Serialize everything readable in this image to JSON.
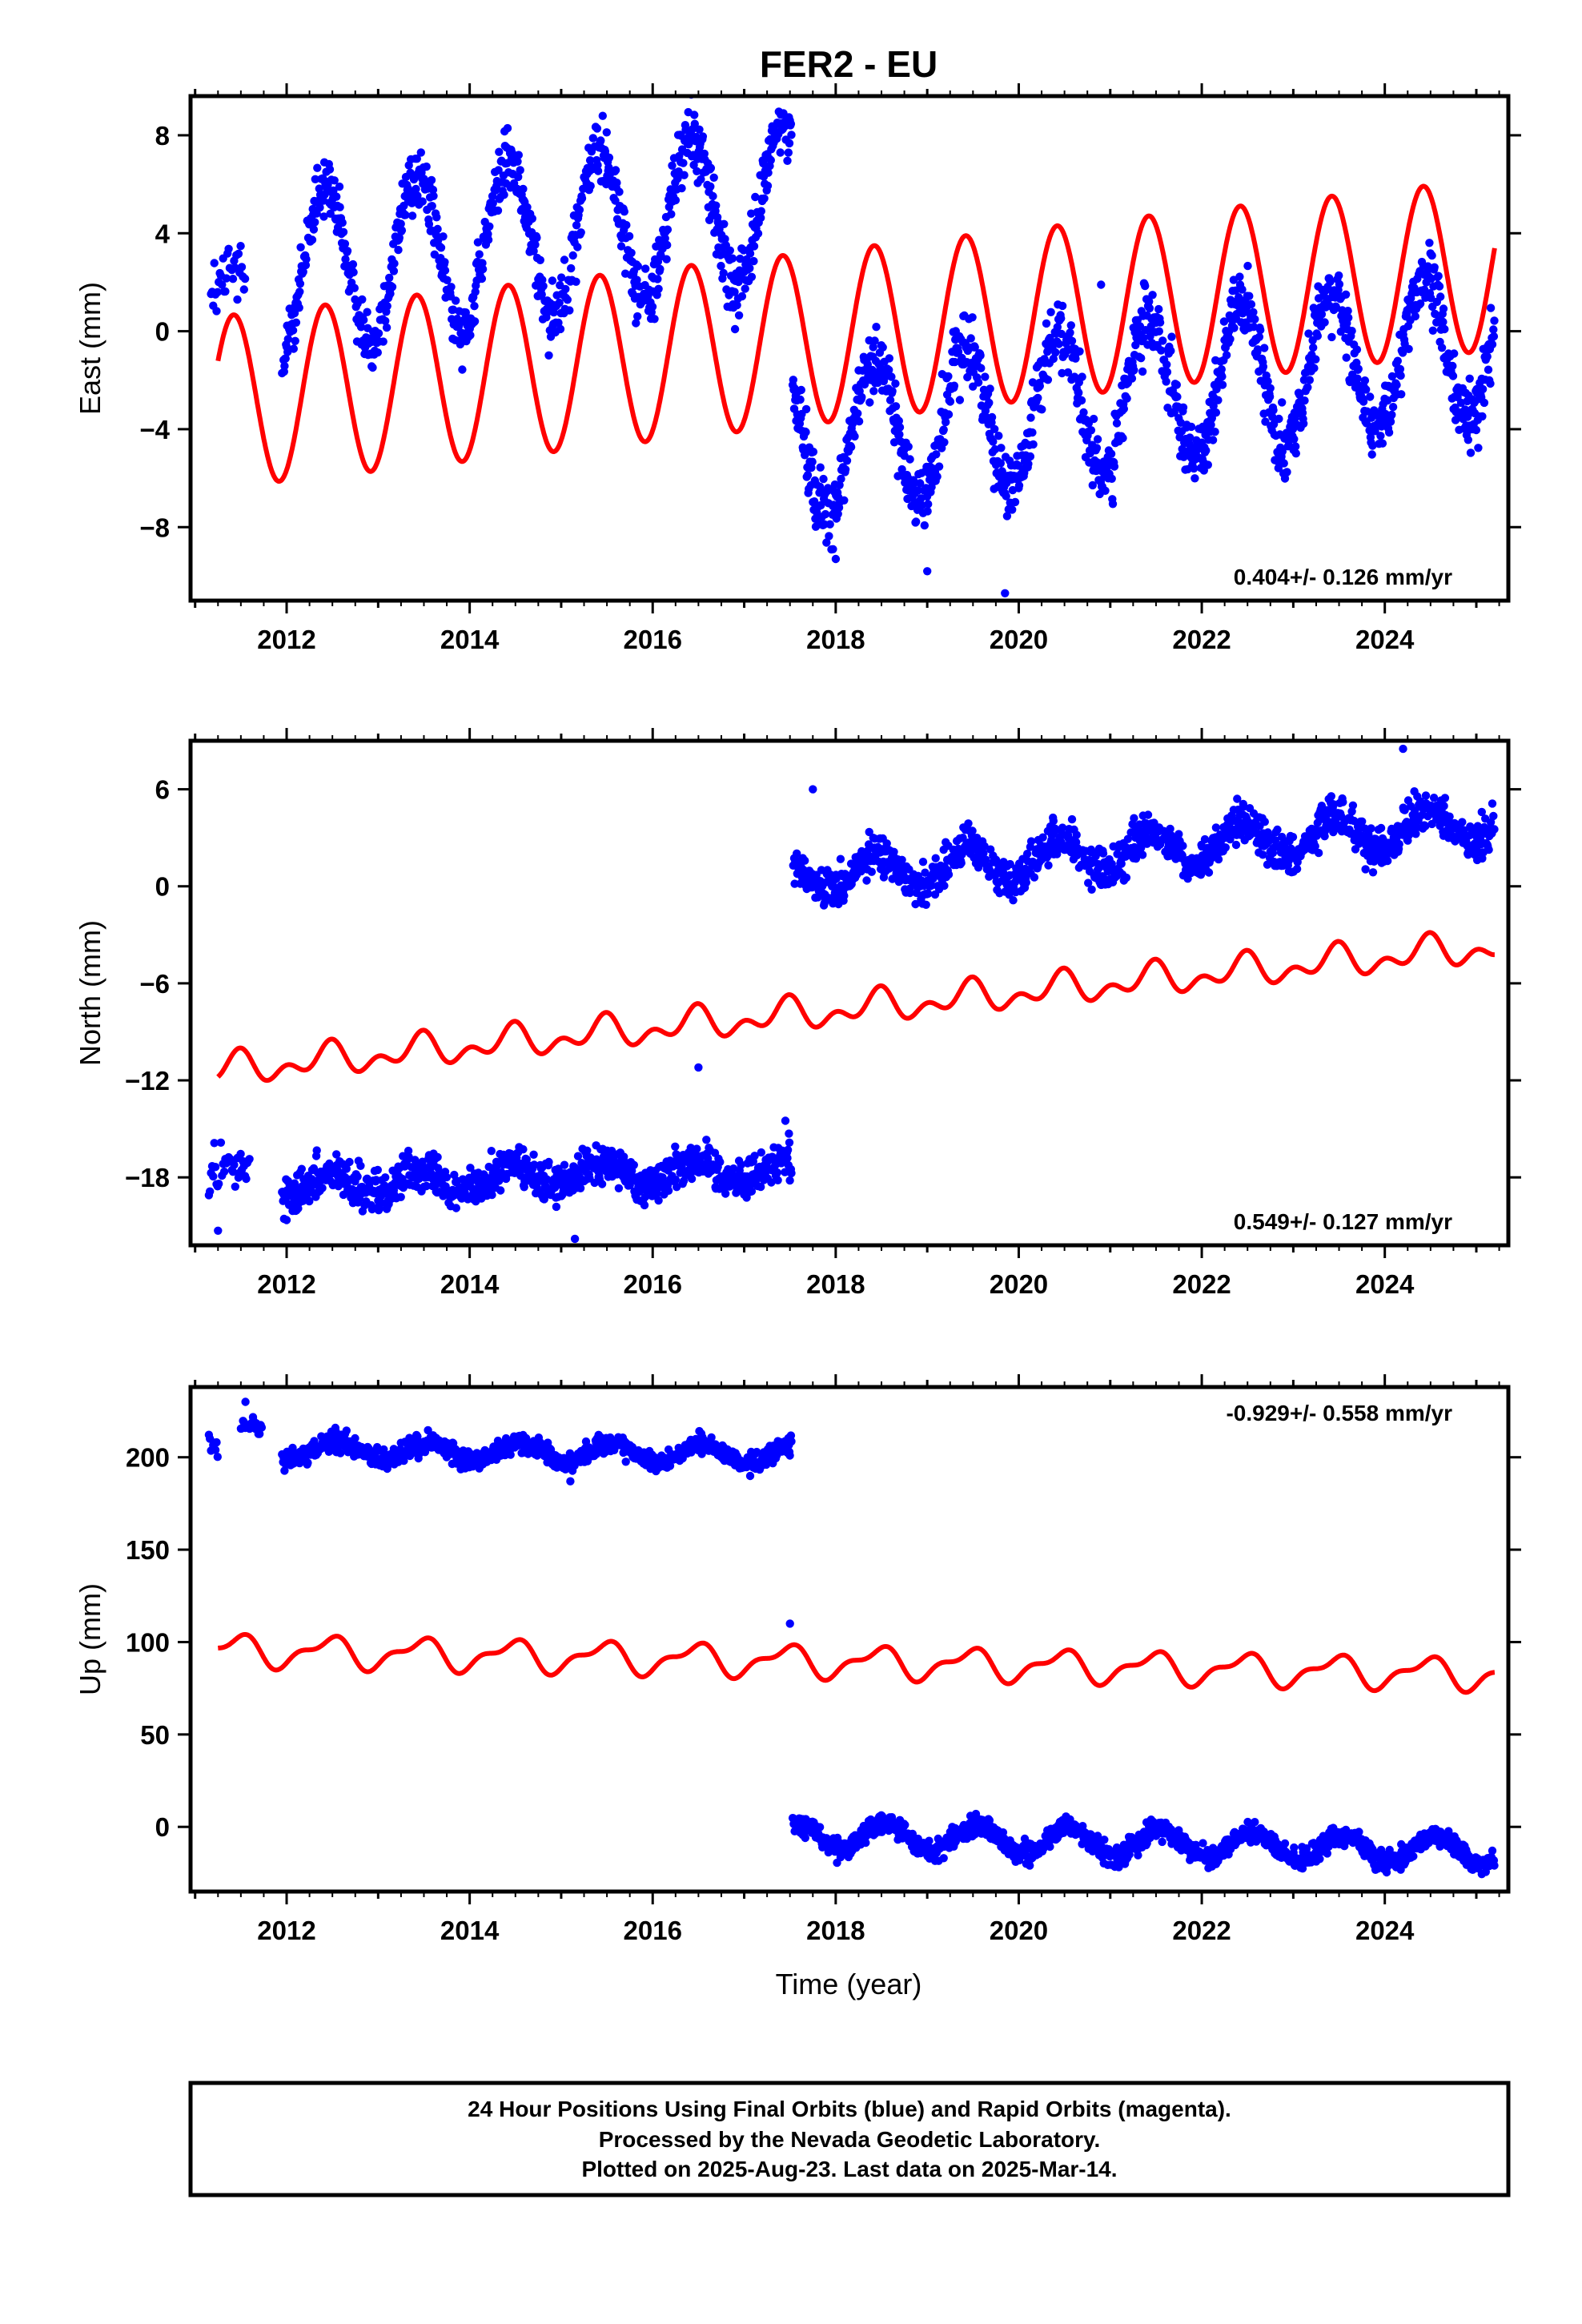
{
  "title": "FER2 - EU",
  "xlabel": "Time (year)",
  "footer": {
    "line1": "24 Hour Positions Using Final Orbits (blue) and Rapid Orbits (magenta).",
    "line2": "Processed by the Nevada Geodetic Laboratory.",
    "line3": "Plotted on 2025-Aug-23. Last data on 2025-Mar-14."
  },
  "colors": {
    "observations": "#0000ff",
    "model": "#ff0000",
    "frame": "#000000"
  },
  "chart_data": [
    {
      "type": "scatter",
      "ylabel": "East (mm)",
      "rate_label": "0.404+/- 0.126 mm/yr",
      "rate_position": "bottom-right",
      "xlim": [
        2010.95,
        2025.35
      ],
      "ylim": [
        -11,
        9.6
      ],
      "xticks": [
        2012,
        2014,
        2016,
        2018,
        2020,
        2022,
        2024
      ],
      "yticks": [
        8,
        4,
        0,
        -4,
        -8
      ],
      "ytick_labels": [
        "8",
        "4",
        "0",
        "−4",
        "−8"
      ],
      "grid": false,
      "observations": {
        "name": "daily positions",
        "segments": [
          {
            "x_start": 2011.15,
            "x_end": 2011.55,
            "base": 1.5,
            "trend": 0,
            "annual_amp": 1.0,
            "annual_phase": 2011.45,
            "noise": 1.0,
            "step": 0.012
          },
          {
            "x_start": 2011.95,
            "x_end": 2017.52,
            "base": 2.3,
            "trend": 0.55,
            "annual_amp": 3.2,
            "annual_phase": 2012.42,
            "noise": 0.9,
            "step": 0.0055
          },
          {
            "x_start": 2017.53,
            "x_end": 2025.2,
            "base": -4.6,
            "trend": 0.55,
            "annual_amp": 3.0,
            "annual_phase": 2012.42,
            "noise": 1.0,
            "step": 0.0055
          }
        ],
        "outliers": [
          [
            2019.0,
            -9.8
          ],
          [
            2018.0,
            -9.3
          ],
          [
            2019.85,
            -10.7
          ],
          [
            2017.97,
            -8.9
          ],
          [
            2020.9,
            1.9
          ]
        ]
      },
      "model": {
        "name": "model fit",
        "x_start": 2011.25,
        "x_end": 2025.2,
        "base": -2.9,
        "trend": 0.404,
        "annual_amp": 3.5,
        "annual_phase": 2011.42,
        "semi_amp": 0.0,
        "semi_phase": 2011.0
      }
    },
    {
      "type": "scatter",
      "ylabel": "North (mm)",
      "rate_label": "0.549+/- 0.127 mm/yr",
      "rate_position": "bottom-right",
      "xlim": [
        2010.95,
        2025.35
      ],
      "ylim": [
        -22.2,
        9
      ],
      "xticks": [
        2012,
        2014,
        2016,
        2018,
        2020,
        2022,
        2024
      ],
      "yticks": [
        6,
        0,
        -6,
        -12,
        -18
      ],
      "ytick_labels": [
        "6",
        "0",
        "−6",
        "−12",
        "−18"
      ],
      "grid": false,
      "observations": {
        "name": "daily positions",
        "segments": [
          {
            "x_start": 2011.15,
            "x_end": 2011.6,
            "base": -17.9,
            "trend": 0.18,
            "annual_amp": 0.7,
            "annual_phase": 2011.4,
            "noise": 0.9,
            "step": 0.012
          },
          {
            "x_start": 2011.95,
            "x_end": 2017.52,
            "base": -18.5,
            "trend": 0.2,
            "annual_amp": 0.7,
            "annual_phase": 2012.45,
            "noise": 0.85,
            "step": 0.0055
          },
          {
            "x_start": 2017.53,
            "x_end": 2025.2,
            "base": 0.5,
            "trend": 0.45,
            "annual_amp": 1.1,
            "annual_phase": 2012.45,
            "noise": 0.85,
            "step": 0.0055
          }
        ],
        "outliers": [
          [
            2015.15,
            -21.8
          ],
          [
            2011.25,
            -21.3
          ],
          [
            2017.75,
            6.0
          ],
          [
            2024.2,
            8.5
          ],
          [
            2016.5,
            -11.2
          ],
          [
            2017.45,
            -14.5
          ]
        ]
      },
      "model": {
        "name": "model fit",
        "x_start": 2011.25,
        "x_end": 2025.2,
        "base": -11.4,
        "trend": 0.549,
        "annual_amp": 0.7,
        "annual_phase": 2011.45,
        "semi_amp": 0.6,
        "semi_phase": 2011.5
      }
    },
    {
      "type": "scatter",
      "ylabel": "Up (mm)",
      "rate_label": "-0.929+/- 0.558 mm/yr",
      "rate_position": "top-right",
      "xlim": [
        2010.95,
        2025.35
      ],
      "ylim": [
        -35,
        238
      ],
      "xticks": [
        2012,
        2014,
        2016,
        2018,
        2020,
        2022,
        2024
      ],
      "yticks": [
        200,
        150,
        100,
        50,
        0
      ],
      "ytick_labels": [
        "200",
        "150",
        "100",
        "50",
        "0"
      ],
      "grid": false,
      "observations": {
        "name": "daily positions",
        "segments": [
          {
            "x_start": 2011.15,
            "x_end": 2011.25,
            "base": 206,
            "trend": 0,
            "annual_amp": 0,
            "annual_phase": 2011.4,
            "noise": 5,
            "step": 0.012
          },
          {
            "x_start": 2011.5,
            "x_end": 2011.75,
            "base": 217,
            "trend": 0,
            "annual_amp": 0,
            "annual_phase": 2011.4,
            "noise": 4,
            "step": 0.012
          },
          {
            "x_start": 2011.95,
            "x_end": 2017.52,
            "base": 204,
            "trend": -0.4,
            "annual_amp": 5,
            "annual_phase": 2012.55,
            "noise": 4,
            "step": 0.0055
          },
          {
            "x_start": 2017.53,
            "x_end": 2025.2,
            "base": -4,
            "trend": -1.2,
            "annual_amp": 7,
            "annual_phase": 2012.55,
            "noise": 4,
            "step": 0.0055
          }
        ],
        "outliers": [
          [
            2017.5,
            110
          ],
          [
            2011.55,
            230
          ],
          [
            2015.1,
            187
          ]
        ]
      },
      "model": {
        "name": "model fit",
        "x_start": 2011.25,
        "x_end": 2025.2,
        "base": 95.5,
        "trend": -0.929,
        "annual_amp": 7.5,
        "annual_phase": 2011.45,
        "semi_amp": 3.5,
        "semi_phase": 2011.1
      }
    }
  ]
}
